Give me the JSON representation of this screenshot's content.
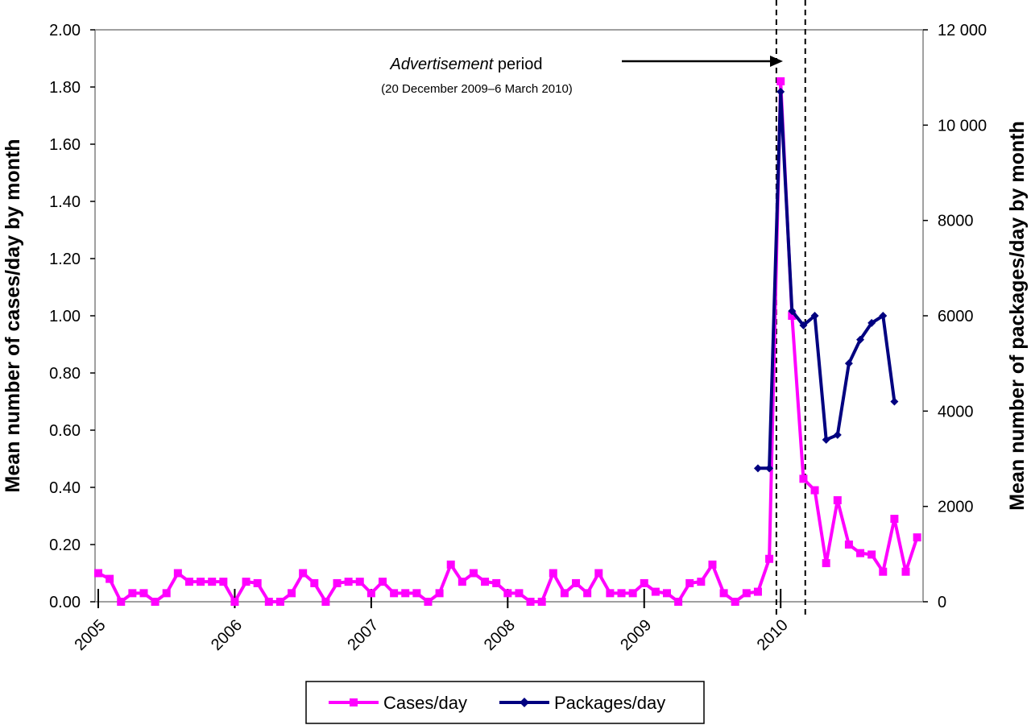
{
  "chart_data": {
    "type": "line",
    "x_labels": [
      "2005",
      "2006",
      "2007",
      "2008",
      "2009",
      "2010"
    ],
    "y_left": {
      "label": "Mean number of cases/day by month",
      "ylim": [
        0,
        2
      ],
      "ticks": [
        "0.00",
        "0.20",
        "0.40",
        "0.60",
        "0.80",
        "1.00",
        "1.20",
        "1.40",
        "1.60",
        "1.80",
        "2.00"
      ]
    },
    "y_right": {
      "label": "Mean number of packages/day by month",
      "ylim": [
        0,
        12000
      ],
      "ticks": [
        "0",
        "2000",
        "4000",
        "6000",
        "8000",
        "10 000",
        "12 000"
      ]
    },
    "annotation": {
      "title_italic": "Advertisement",
      "title_rest": " period",
      "subtitle": "(20 December 2009–6 March 2010)",
      "period_start": "2009-12-20",
      "period_end": "2010-03-06"
    },
    "legend": {
      "position": "bottom-center",
      "items": [
        "Cases/day",
        "Packages/day"
      ]
    },
    "series": [
      {
        "name": "Cases/day",
        "axis": "left",
        "color": "#ff00ff",
        "marker": "square",
        "start": "2005-01",
        "values": [
          0.1,
          0.08,
          0.0,
          0.03,
          0.03,
          0.0,
          0.03,
          0.1,
          0.07,
          0.07,
          0.07,
          0.07,
          0.0,
          0.07,
          0.065,
          0.0,
          0.0,
          0.03,
          0.1,
          0.065,
          0.0,
          0.065,
          0.07,
          0.07,
          0.03,
          0.07,
          0.03,
          0.03,
          0.03,
          0.0,
          0.03,
          0.13,
          0.07,
          0.1,
          0.07,
          0.065,
          0.03,
          0.03,
          0.0,
          0.0,
          0.1,
          0.03,
          0.065,
          0.03,
          0.1,
          0.03,
          0.03,
          0.03,
          0.065,
          0.035,
          0.03,
          0.0,
          0.065,
          0.07,
          0.13,
          0.03,
          0.0,
          0.03,
          0.035,
          0.15,
          1.82,
          1.0,
          0.43,
          0.39,
          0.135,
          0.355,
          0.2,
          0.17,
          0.165,
          0.105,
          0.29,
          0.105,
          0.225
        ]
      },
      {
        "name": "Packages/day",
        "axis": "right",
        "color": "#000080",
        "marker": "diamond",
        "start": "2009-11",
        "values": [
          2800,
          2800,
          10700,
          6100,
          5800,
          6000,
          3400,
          3500,
          5000,
          5500,
          5850,
          6000,
          4200
        ]
      }
    ]
  }
}
